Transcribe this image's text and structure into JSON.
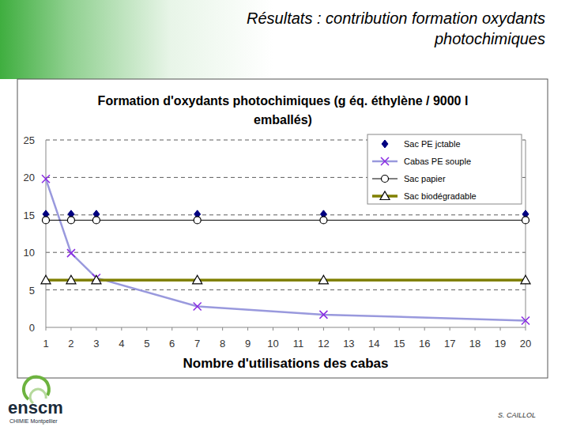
{
  "slide": {
    "title": "Résultats : contribution formation oxydants photochimiques",
    "author": "S. CAILLOL",
    "logo": "enscm",
    "logo_subtitle": "CHIMIE Montpellier"
  },
  "chart_data": {
    "type": "line",
    "title": "Formation d'oxydants photochimiques (g éq. éthylène / 9000 l emballés)",
    "x_label": "Nombre d'utilisations des cabas",
    "x": [
      1,
      2,
      3,
      7,
      12,
      20
    ],
    "series": [
      {
        "name": "Sac PE jctable",
        "color": "#000080",
        "marker": "diamond",
        "line_style": "none",
        "values": [
          15.1,
          15.1,
          15.1,
          15.1,
          15.1,
          15.1
        ]
      },
      {
        "name": "Cabas PE souple",
        "color": "#8a2be2",
        "marker": "x",
        "line_style": "solid",
        "values": [
          19.8,
          9.9,
          6.6,
          2.8,
          1.7,
          0.9
        ]
      },
      {
        "name": "Sac papier",
        "color": "#000000",
        "marker": "circle",
        "line_style": "solid",
        "values": [
          14.3,
          14.3,
          14.3,
          14.3,
          14.3,
          14.3
        ]
      },
      {
        "name": "Sac biodégradable",
        "color": "#808000",
        "marker": "triangle",
        "line_style": "solid",
        "values": [
          6.3,
          6.3,
          6.3,
          6.3,
          6.3,
          6.3
        ]
      }
    ],
    "xlim": [
      1,
      20
    ],
    "xticks": [
      1,
      2,
      3,
      4,
      5,
      6,
      7,
      8,
      9,
      10,
      11,
      12,
      13,
      14,
      15,
      16,
      17,
      18,
      19,
      20
    ],
    "ylim": [
      0,
      25
    ],
    "yticks": [
      0,
      5,
      10,
      15,
      20,
      25
    ],
    "grid": "y",
    "legend": "top-right"
  }
}
